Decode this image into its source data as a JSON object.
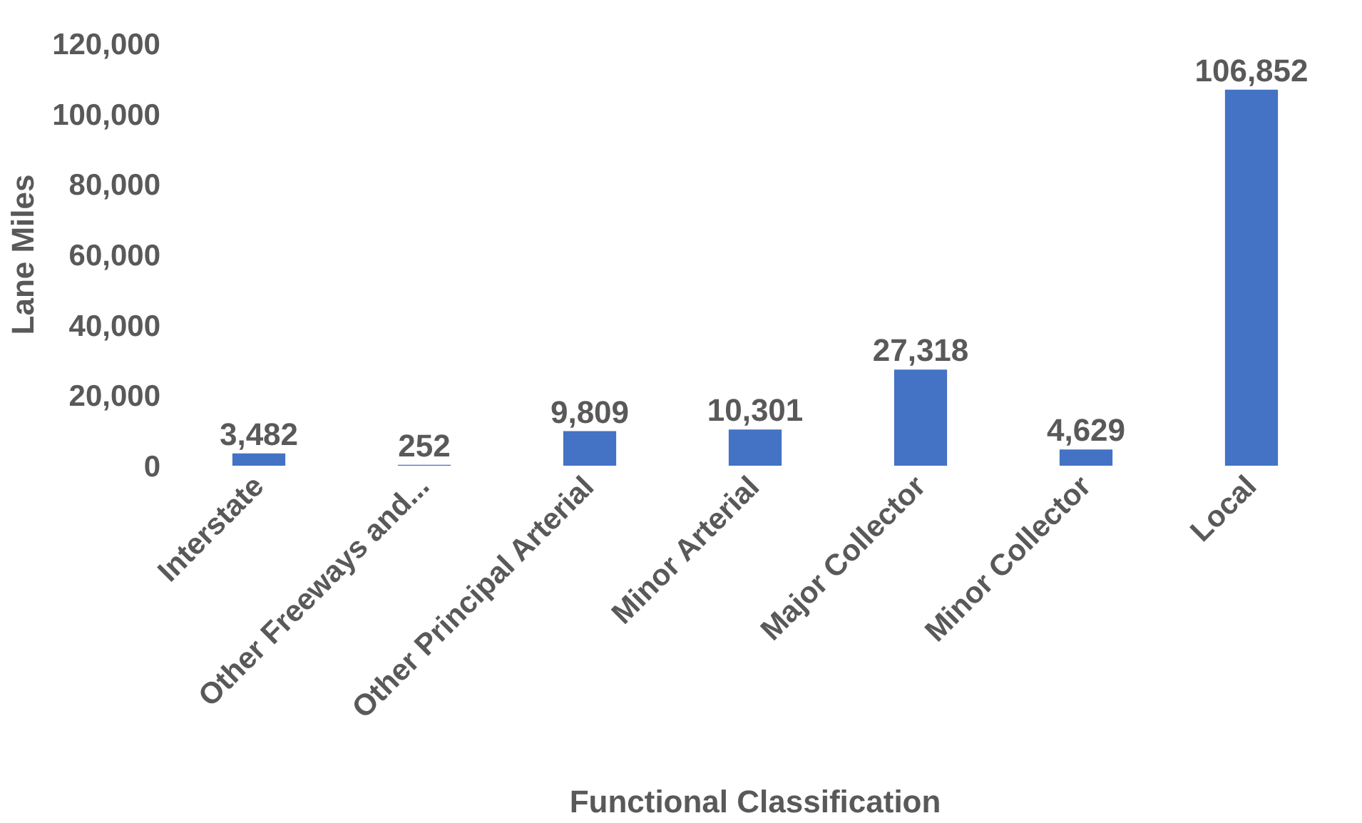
{
  "chart_data": {
    "type": "bar",
    "xlabel": "Functional Classification",
    "ylabel": "Lane Miles",
    "categories": [
      "Interstate",
      "Other Freeways and...",
      "Other Principal Arterial",
      "Minor Arterial",
      "Major Collector",
      "Minor Collector",
      "Local"
    ],
    "values": [
      3482,
      252,
      9809,
      10301,
      27318,
      4629,
      106852
    ],
    "value_labels": [
      "3,482",
      "252",
      "9,809",
      "10,301",
      "27,318",
      "4,629",
      "106,852"
    ],
    "color": "#4472c4",
    "ylim": [
      0,
      120000
    ],
    "yticks": [
      {
        "value": 0,
        "label": "0"
      },
      {
        "value": 20000,
        "label": "20,000"
      },
      {
        "value": 40000,
        "label": "40,000"
      },
      {
        "value": 60000,
        "label": "60,000"
      },
      {
        "value": 80000,
        "label": "80,000"
      },
      {
        "value": 100000,
        "label": "100,000"
      },
      {
        "value": 120000,
        "label": "120,000"
      }
    ]
  }
}
